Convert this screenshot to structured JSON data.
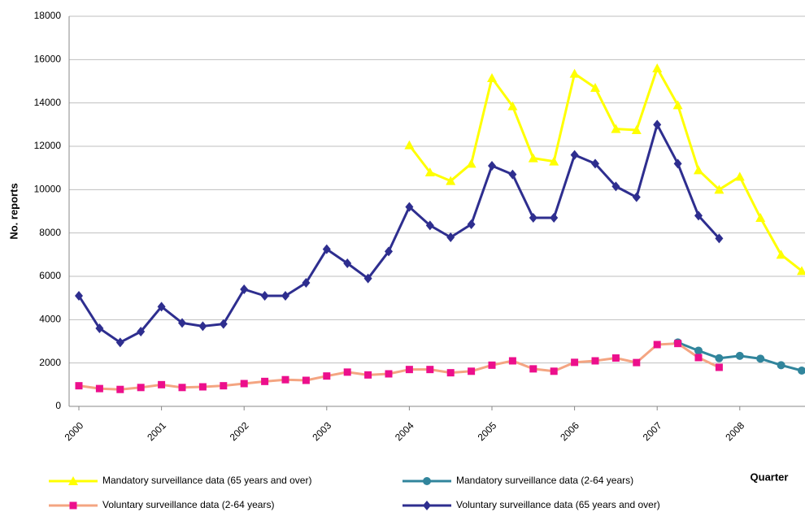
{
  "chart_data": {
    "type": "line",
    "y_label": "No. reports",
    "x_label": "Quarter",
    "categories": [
      "2000",
      null,
      null,
      null,
      "2001",
      null,
      null,
      null,
      "2002",
      null,
      null,
      null,
      "2003",
      null,
      null,
      null,
      "2004",
      null,
      null,
      null,
      "2005",
      null,
      null,
      null,
      "2006",
      null,
      null,
      null,
      "2007",
      null,
      null,
      null,
      "2008",
      null,
      null,
      null
    ],
    "ylim": [
      0,
      18000
    ],
    "yticks": [
      0,
      2000,
      4000,
      6000,
      8000,
      10000,
      12000,
      14000,
      16000,
      18000
    ],
    "grid": true,
    "series": [
      {
        "name": "Mandatory surveillance data (65 years and over)",
        "color": "#ffff00",
        "marker": "triangle",
        "marker_color": "#ffff00",
        "values": [
          null,
          null,
          null,
          null,
          null,
          null,
          null,
          null,
          null,
          null,
          null,
          null,
          null,
          null,
          null,
          null,
          12050,
          10800,
          10400,
          11200,
          15150,
          13850,
          11450,
          11300,
          15350,
          14700,
          12800,
          12750,
          15600,
          13900,
          10900,
          10000,
          10600,
          8700,
          7000,
          6250
        ]
      },
      {
        "name": "Mandatory surveillance data (2-64 years)",
        "color": "#31859c",
        "marker": "circle",
        "marker_color": "#31859c",
        "values": [
          null,
          null,
          null,
          null,
          null,
          null,
          null,
          null,
          null,
          null,
          null,
          null,
          null,
          null,
          null,
          null,
          null,
          null,
          null,
          null,
          null,
          null,
          null,
          null,
          null,
          null,
          null,
          null,
          null,
          2950,
          2570,
          2220,
          2330,
          2200,
          1900,
          1650
        ]
      },
      {
        "name": "Voluntary surveillance data (2-64 years)",
        "color": "#f4a582",
        "marker": "square",
        "marker_color": "#ec0f8c",
        "values": [
          950,
          820,
          780,
          870,
          1000,
          870,
          900,
          950,
          1050,
          1150,
          1230,
          1200,
          1400,
          1580,
          1450,
          1500,
          1700,
          1700,
          1550,
          1620,
          1900,
          2100,
          1730,
          1620,
          2030,
          2100,
          2230,
          2020,
          2850,
          2900,
          2250,
          1800,
          null,
          null,
          null,
          null
        ]
      },
      {
        "name": "Voluntary surveillance data (65 years and over)",
        "color": "#2e2e8f",
        "marker": "diamond",
        "marker_color": "#2e2e8f",
        "values": [
          5100,
          3600,
          2950,
          3450,
          4600,
          3850,
          3700,
          3800,
          5400,
          5100,
          5100,
          5700,
          7250,
          6600,
          5900,
          7150,
          9200,
          8350,
          7800,
          8400,
          11100,
          10700,
          8700,
          8700,
          11600,
          11200,
          10150,
          9650,
          13000,
          11200,
          8800,
          7750,
          null,
          null,
          null,
          null
        ]
      }
    ]
  }
}
